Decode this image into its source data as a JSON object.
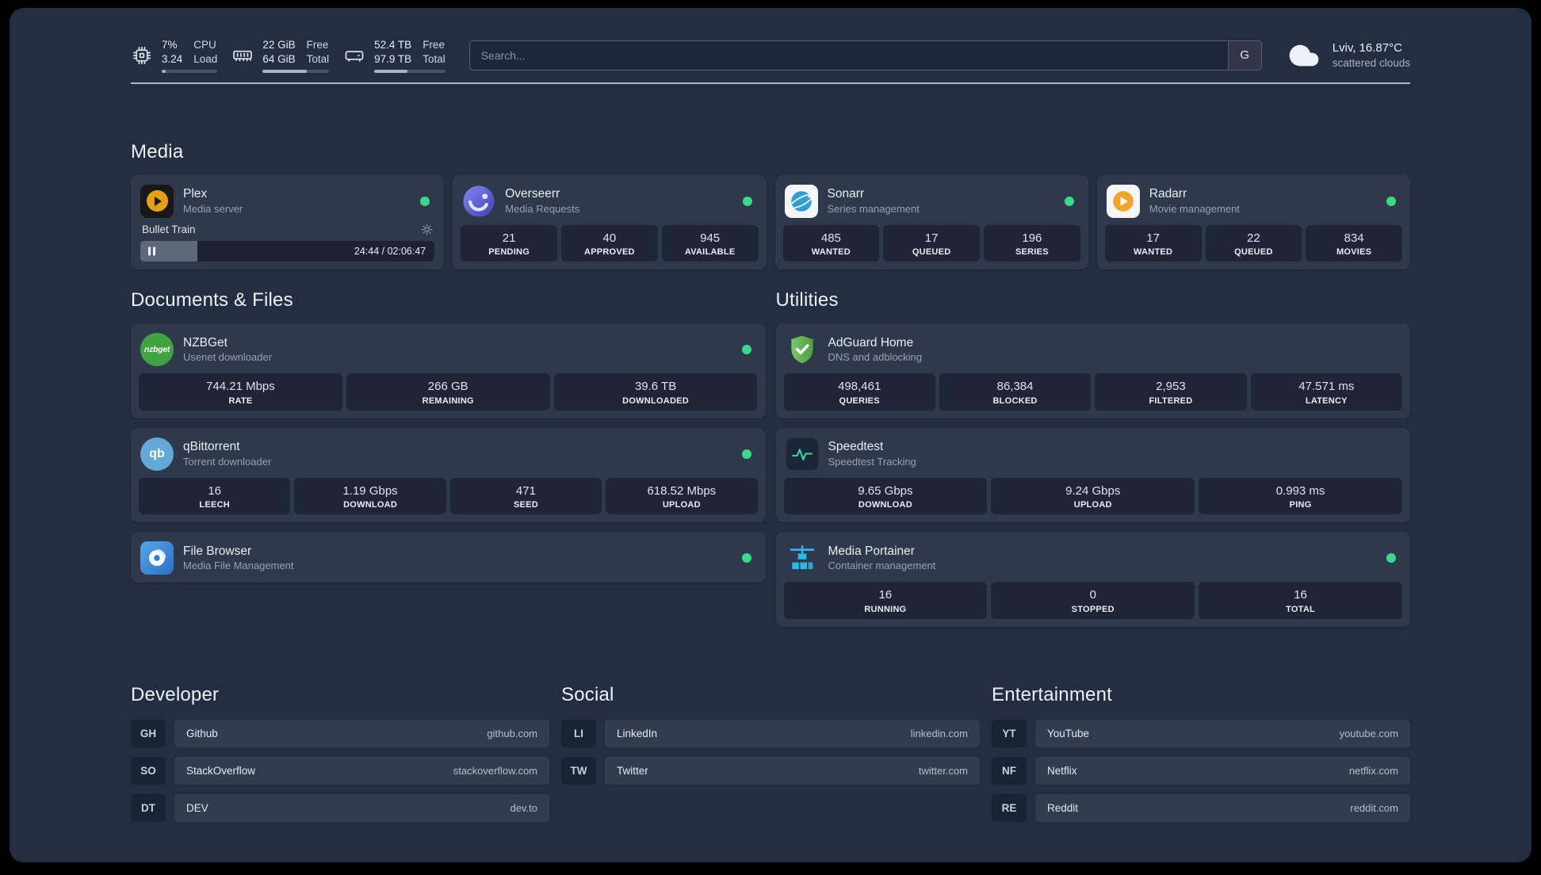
{
  "colors": {
    "page_background": "#232e42",
    "status_online_green": "#39d98a",
    "plex_amber": "#e5a00d",
    "adguard_green": "#5fae4d",
    "portainer_blue": "#2cb9e7",
    "speedtest_green": "#35d49e"
  },
  "icons": {
    "topbar": [
      "cpu-icon",
      "ram-icon",
      "disk-icon",
      "cloud-icon"
    ],
    "cards": [
      "plex-icon",
      "overseerr-icon",
      "sonarr-icon",
      "radarr-icon",
      "nzbget-icon",
      "qbittorrent-icon",
      "filebrowser-icon",
      "adguard-icon",
      "speedtest-icon",
      "portainer-icon"
    ],
    "misc": [
      "gear-icon",
      "pause-icon",
      "status-dot"
    ]
  },
  "topbar": {
    "cpu": {
      "value1": "7%",
      "label1": "CPU",
      "value2": "3.24",
      "label2": "Load",
      "bar_pct": 7
    },
    "ram": {
      "value1": "22 GiB",
      "label1": "Free",
      "value2": "64 GiB",
      "label2": "Total",
      "bar_pct": 66
    },
    "disk": {
      "value1": "52.4 TB",
      "label1": "Free",
      "value2": "97.9 TB",
      "label2": "Total",
      "bar_pct": 47
    },
    "search": {
      "placeholder": "Search...",
      "provider_label": "G"
    },
    "weather": {
      "location": "Lviv, 16.87°C",
      "condition": "scattered clouds"
    }
  },
  "media": {
    "title": "Media",
    "cards": {
      "plex": {
        "name": "Plex",
        "subtitle": "Media server",
        "status": "online",
        "player": {
          "track": "Bullet Train",
          "time": "24:44 / 02:06:47",
          "progress_pct": 19.5,
          "state": "paused"
        }
      },
      "overseerr": {
        "name": "Overseerr",
        "subtitle": "Media Requests",
        "status": "online",
        "stats": [
          {
            "value": "21",
            "label": "PENDING"
          },
          {
            "value": "40",
            "label": "APPROVED"
          },
          {
            "value": "945",
            "label": "AVAILABLE"
          }
        ]
      },
      "sonarr": {
        "name": "Sonarr",
        "subtitle": "Series management",
        "status": "online",
        "stats": [
          {
            "value": "485",
            "label": "WANTED"
          },
          {
            "value": "17",
            "label": "QUEUED"
          },
          {
            "value": "196",
            "label": "SERIES"
          }
        ]
      },
      "radarr": {
        "name": "Radarr",
        "subtitle": "Movie management",
        "status": "online",
        "stats": [
          {
            "value": "17",
            "label": "WANTED"
          },
          {
            "value": "22",
            "label": "QUEUED"
          },
          {
            "value": "834",
            "label": "MOVIES"
          }
        ]
      }
    }
  },
  "documents": {
    "title": "Documents & Files",
    "cards": {
      "nzbget": {
        "name": "NZBGet",
        "subtitle": "Usenet downloader",
        "status": "online",
        "stats": [
          {
            "value": "744.21 Mbps",
            "label": "RATE"
          },
          {
            "value": "266 GB",
            "label": "REMAINING"
          },
          {
            "value": "39.6 TB",
            "label": "DOWNLOADED"
          }
        ]
      },
      "qbittorrent": {
        "name": "qBittorrent",
        "subtitle": "Torrent downloader",
        "status": "online",
        "stats": [
          {
            "value": "16",
            "label": "LEECH"
          },
          {
            "value": "1.19 Gbps",
            "label": "DOWNLOAD"
          },
          {
            "value": "471",
            "label": "SEED"
          },
          {
            "value": "618.52 Mbps",
            "label": "UPLOAD"
          }
        ]
      },
      "filebrowser": {
        "name": "File Browser",
        "subtitle": "Media File Management",
        "status": "online"
      }
    }
  },
  "utilities": {
    "title": "Utilities",
    "cards": {
      "adguard": {
        "name": "AdGuard Home",
        "subtitle": "DNS and adblocking",
        "stats": [
          {
            "value": "498,461",
            "label": "QUERIES"
          },
          {
            "value": "86,384",
            "label": "BLOCKED"
          },
          {
            "value": "2,953",
            "label": "FILTERED"
          },
          {
            "value": "47.571 ms",
            "label": "LATENCY"
          }
        ]
      },
      "speedtest": {
        "name": "Speedtest",
        "subtitle": "Speedtest Tracking",
        "stats": [
          {
            "value": "9.65 Gbps",
            "label": "DOWNLOAD"
          },
          {
            "value": "9.24 Gbps",
            "label": "UPLOAD"
          },
          {
            "value": "0.993 ms",
            "label": "PING"
          }
        ]
      },
      "portainer": {
        "name": "Media Portainer",
        "subtitle": "Container management",
        "status": "online",
        "stats": [
          {
            "value": "16",
            "label": "RUNNING"
          },
          {
            "value": "0",
            "label": "STOPPED"
          },
          {
            "value": "16",
            "label": "TOTAL"
          }
        ]
      }
    }
  },
  "bookmarks": {
    "developer": {
      "title": "Developer",
      "items": [
        {
          "abbr": "GH",
          "name": "Github",
          "domain": "github.com"
        },
        {
          "abbr": "SO",
          "name": "StackOverflow",
          "domain": "stackoverflow.com"
        },
        {
          "abbr": "DT",
          "name": "DEV",
          "domain": "dev.to"
        }
      ]
    },
    "social": {
      "title": "Social",
      "items": [
        {
          "abbr": "LI",
          "name": "LinkedIn",
          "domain": "linkedin.com"
        },
        {
          "abbr": "TW",
          "name": "Twitter",
          "domain": "twitter.com"
        }
      ]
    },
    "entertainment": {
      "title": "Entertainment",
      "items": [
        {
          "abbr": "YT",
          "name": "YouTube",
          "domain": "youtube.com"
        },
        {
          "abbr": "NF",
          "name": "Netflix",
          "domain": "netflix.com"
        },
        {
          "abbr": "RE",
          "name": "Reddit",
          "domain": "reddit.com"
        }
      ]
    }
  },
  "glyphs": {
    "nzbget_label": "nzbget",
    "qbittorrent_label": "qb"
  }
}
